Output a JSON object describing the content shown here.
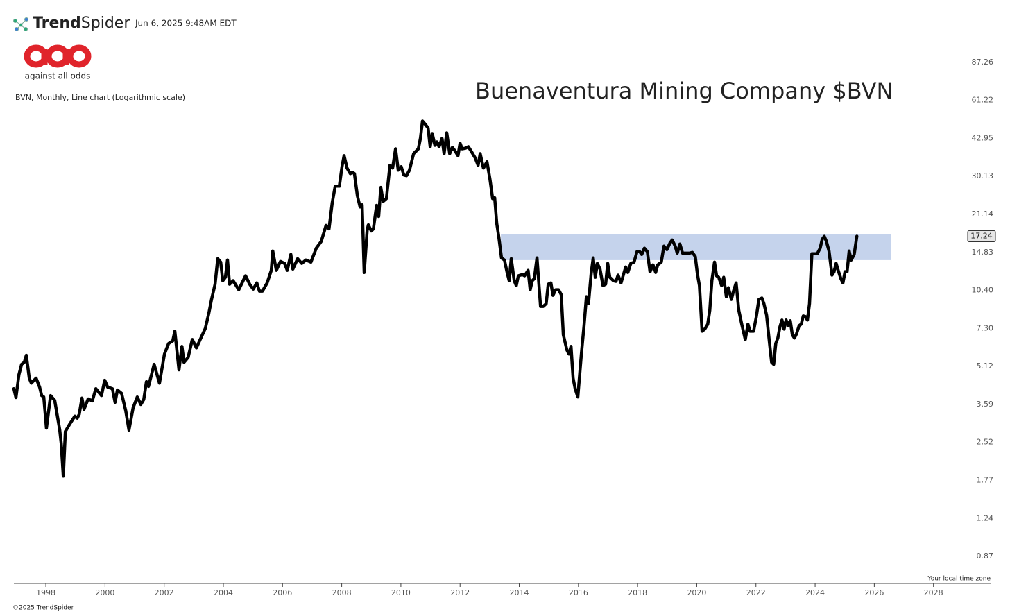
{
  "header": {
    "brand_bold": "Trend",
    "brand_light": "Spider",
    "timestamp": "Jun 6, 2025 9:48AM EDT",
    "logo_tagline": "against all odds",
    "footer": "©2025 TrendSpider"
  },
  "chart_data": {
    "type": "line",
    "title": "Buenaventura Mining Company $BVN",
    "subtitle": "BVN, Monthly, Line chart (Logarithmic scale)",
    "annotation": "Your local time zone",
    "yscale": "log",
    "color": "#000000",
    "zone_color": "#c5d3ec",
    "zone": {
      "x": [
        2013.38,
        2026.56
      ],
      "y": [
        13.8,
        17.6
      ]
    },
    "xlim": [
      1996.92,
      2029.93
    ],
    "ylim": [
      0.676,
      105.9
    ],
    "xticks": [
      1998,
      2000,
      2002,
      2004,
      2006,
      2008,
      2010,
      2012,
      2014,
      2016,
      2018,
      2020,
      2022,
      2024,
      2026,
      2028
    ],
    "yticks": [
      0.87,
      1.24,
      1.77,
      2.52,
      3.59,
      5.12,
      {
        "value": 7.3,
        "label": "7.30"
      },
      {
        "value": 10.4,
        "label": "10.40"
      },
      14.83,
      21.14,
      30.13,
      42.95,
      61.22,
      87.26
    ],
    "x": [
      1996.92,
      1996.99,
      1997.09,
      1997.18,
      1997.27,
      1997.34,
      1997.44,
      1997.51,
      1997.67,
      1997.79,
      1997.86,
      1997.93,
      1998.02,
      1998.16,
      1998.3,
      1998.47,
      1998.52,
      1998.59,
      1998.66,
      1998.8,
      1998.98,
      1999.06,
      1999.13,
      1999.22,
      1999.29,
      1999.43,
      1999.57,
      1999.69,
      1999.88,
      1999.99,
      2000.09,
      2000.25,
      2000.34,
      2000.42,
      2000.56,
      2000.7,
      2000.81,
      2000.95,
      2001.09,
      2001.21,
      2001.31,
      2001.4,
      2001.47,
      2001.66,
      2001.84,
      2002.01,
      2002.15,
      2002.29,
      2002.36,
      2002.5,
      2002.6,
      2002.67,
      2002.81,
      2002.95,
      2003.09,
      2003.25,
      2003.39,
      2003.51,
      2003.6,
      2003.72,
      2003.81,
      2003.91,
      2003.98,
      2004.07,
      2004.14,
      2004.21,
      2004.33,
      2004.52,
      2004.75,
      2004.89,
      2005.01,
      2005.13,
      2005.22,
      2005.32,
      2005.48,
      2005.62,
      2005.67,
      2005.79,
      2005.93,
      2006.07,
      2006.16,
      2006.28,
      2006.35,
      2006.51,
      2006.65,
      2006.79,
      2006.96,
      2007.14,
      2007.31,
      2007.47,
      2007.57,
      2007.68,
      2007.78,
      2007.92,
      2008.01,
      2008.08,
      2008.18,
      2008.29,
      2008.36,
      2008.43,
      2008.53,
      2008.62,
      2008.69,
      2008.76,
      2008.86,
      2008.9,
      2009.0,
      2009.07,
      2009.18,
      2009.25,
      2009.32,
      2009.4,
      2009.51,
      2009.63,
      2009.72,
      2009.82,
      2009.91,
      2010.01,
      2010.1,
      2010.19,
      2010.29,
      2010.43,
      2010.59,
      2010.66,
      2010.73,
      2010.83,
      2010.92,
      2010.99,
      2011.06,
      2011.15,
      2011.22,
      2011.29,
      2011.39,
      2011.46,
      2011.55,
      2011.65,
      2011.74,
      2011.83,
      2011.93,
      2012.0,
      2012.07,
      2012.19,
      2012.28,
      2012.4,
      2012.51,
      2012.61,
      2012.68,
      2012.79,
      2012.91,
      2013.01,
      2013.1,
      2013.17,
      2013.24,
      2013.31,
      2013.4,
      2013.5,
      2013.59,
      2013.66,
      2013.73,
      2013.83,
      2013.9,
      2013.97,
      2014.11,
      2014.18,
      2014.3,
      2014.37,
      2014.44,
      2014.51,
      2014.6,
      2014.72,
      2014.81,
      2014.91,
      2014.98,
      2015.07,
      2015.14,
      2015.23,
      2015.33,
      2015.42,
      2015.49,
      2015.61,
      2015.68,
      2015.75,
      2015.82,
      2015.89,
      2015.98,
      2016.1,
      2016.19,
      2016.27,
      2016.34,
      2016.43,
      2016.5,
      2016.57,
      2016.64,
      2016.73,
      2016.83,
      2016.92,
      2016.99,
      2017.06,
      2017.18,
      2017.27,
      2017.34,
      2017.44,
      2017.51,
      2017.6,
      2017.67,
      2017.77,
      2017.88,
      2017.98,
      2018.07,
      2018.14,
      2018.23,
      2018.33,
      2018.42,
      2018.52,
      2018.61,
      2018.68,
      2018.8,
      2018.89,
      2018.99,
      2019.1,
      2019.17,
      2019.27,
      2019.34,
      2019.43,
      2019.52,
      2019.66,
      2019.76,
      2019.85,
      2019.95,
      2020.02,
      2020.09,
      2020.18,
      2020.27,
      2020.37,
      2020.44,
      2020.51,
      2020.6,
      2020.67,
      2020.74,
      2020.84,
      2020.91,
      2021.0,
      2021.07,
      2021.17,
      2021.24,
      2021.33,
      2021.42,
      2021.52,
      2021.64,
      2021.73,
      2021.8,
      2021.92,
      2022.01,
      2022.1,
      2022.2,
      2022.27,
      2022.36,
      2022.46,
      2022.53,
      2022.6,
      2022.67,
      2022.74,
      2022.81,
      2022.88,
      2022.95,
      2023.02,
      2023.09,
      2023.16,
      2023.23,
      2023.3,
      2023.37,
      2023.46,
      2023.53,
      2023.6,
      2023.67,
      2023.74,
      2023.81,
      2023.89,
      2024.0,
      2024.07,
      2024.17,
      2024.24,
      2024.31,
      2024.38,
      2024.47,
      2024.57,
      2024.64,
      2024.71,
      2024.78,
      2024.87,
      2024.94,
      2025.01,
      2025.08,
      2025.15,
      2025.22,
      2025.32,
      2025.41
    ],
    "values": [
      4.16,
      3.83,
      4.74,
      5.22,
      5.32,
      5.68,
      4.59,
      4.38,
      4.59,
      4.22,
      3.9,
      3.85,
      2.88,
      3.9,
      3.73,
      2.83,
      2.49,
      1.84,
      2.79,
      2.98,
      3.22,
      3.16,
      3.28,
      3.81,
      3.43,
      3.78,
      3.71,
      4.16,
      3.9,
      4.5,
      4.22,
      4.16,
      3.66,
      4.11,
      3.98,
      3.39,
      2.83,
      3.48,
      3.85,
      3.59,
      3.76,
      4.44,
      4.25,
      5.22,
      4.38,
      5.75,
      6.34,
      6.5,
      7.11,
      4.96,
      6.17,
      5.32,
      5.57,
      6.58,
      6.09,
      6.71,
      7.3,
      8.42,
      9.56,
      11.02,
      13.98,
      13.54,
      11.39,
      11.76,
      13.81,
      11.02,
      11.39,
      10.47,
      11.92,
      11.02,
      10.53,
      11.16,
      10.33,
      10.33,
      11.16,
      12.54,
      15.02,
      12.54,
      13.63,
      13.38,
      12.54,
      14.55,
      12.69,
      13.98,
      13.38,
      13.81,
      13.54,
      15.42,
      16.45,
      19.07,
      18.46,
      23.59,
      27.51,
      27.51,
      32.99,
      36.55,
      32.57,
      30.91,
      31.31,
      30.91,
      25.13,
      22.66,
      23.11,
      12.3,
      18.22,
      19.17,
      18.1,
      18.46,
      23.0,
      20.73,
      27.18,
      23.86,
      24.5,
      33.41,
      32.57,
      38.96,
      31.94,
      32.99,
      30.52,
      30.33,
      31.94,
      37.24,
      38.96,
      42.95,
      50.47,
      48.88,
      47.33,
      39.73,
      44.93,
      40.24,
      41.58,
      39.73,
      42.95,
      37.24,
      45.23,
      37.24,
      39.47,
      38.23,
      36.55,
      41.06,
      38.96,
      39.21,
      39.73,
      37.7,
      35.82,
      33.41,
      37.24,
      32.57,
      34.53,
      29.36,
      24.5,
      24.69,
      19.43,
      17.1,
      14.09,
      13.81,
      12.3,
      11.39,
      13.98,
      11.39,
      10.88,
      11.92,
      12.07,
      11.92,
      12.54,
      10.47,
      11.39,
      11.61,
      14.09,
      8.96,
      8.96,
      9.19,
      11.02,
      11.16,
      9.94,
      10.47,
      10.47,
      10.0,
      6.88,
      5.97,
      5.75,
      6.17,
      4.59,
      4.16,
      3.85,
      5.75,
      7.49,
      9.81,
      9.19,
      12.15,
      14.09,
      11.76,
      13.38,
      12.69,
      10.88,
      11.02,
      13.38,
      11.76,
      11.39,
      11.32,
      12.0,
      11.16,
      11.92,
      12.95,
      12.3,
      13.38,
      13.54,
      14.93,
      14.93,
      14.55,
      15.42,
      14.93,
      12.37,
      13.2,
      12.3,
      13.2,
      13.54,
      15.72,
      15.22,
      16.24,
      16.65,
      15.72,
      14.73,
      16.03,
      14.73,
      14.73,
      14.73,
      14.83,
      14.26,
      12.15,
      10.88,
      7.11,
      7.25,
      7.59,
      8.64,
      11.39,
      13.54,
      11.92,
      11.76,
      10.88,
      11.76,
      9.81,
      10.67,
      9.56,
      10.33,
      11.16,
      8.64,
      7.59,
      6.58,
      7.59,
      7.11,
      7.11,
      8.1,
      9.56,
      9.69,
      9.19,
      8.26,
      6.34,
      5.32,
      5.22,
      6.34,
      6.67,
      7.4,
      7.89,
      7.25,
      7.89,
      7.49,
      7.84,
      6.88,
      6.67,
      6.93,
      7.49,
      7.59,
      8.2,
      8.15,
      7.89,
      9.19,
      14.64,
      14.64,
      14.64,
      15.42,
      16.77,
      17.22,
      16.45,
      15.02,
      12.0,
      12.38,
      13.38,
      12.54,
      11.61,
      11.16,
      12.38,
      12.38,
      15.02,
      13.81,
      14.55,
      17.24
    ]
  }
}
